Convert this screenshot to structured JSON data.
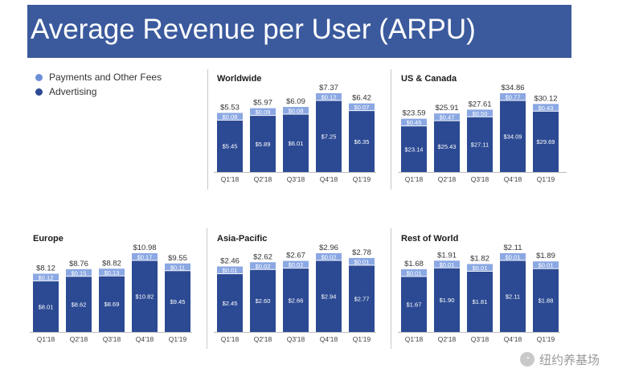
{
  "title": "Average Revenue per User (ARPU)",
  "legend": [
    {
      "label": "Payments and Other Fees",
      "color": "#6c8fd6"
    },
    {
      "label": "Advertising",
      "color": "#2c4a93"
    }
  ],
  "colors": {
    "advertising": "#2c4a93",
    "payments": "#8ba8e3",
    "title_bar": "#3b5a9d"
  },
  "watermark": "纽约养基场",
  "chart_data": [
    {
      "type": "bar",
      "stacked": true,
      "title": "Worldwide",
      "categories": [
        "Q1'18",
        "Q2'18",
        "Q3'18",
        "Q4'18",
        "Q1'19"
      ],
      "series": [
        {
          "name": "Advertising",
          "values": [
            5.45,
            5.89,
            6.01,
            7.25,
            6.35
          ],
          "labels": [
            "$5.45",
            "$5.89",
            "$6.01",
            "$7.25",
            "$6.35"
          ]
        },
        {
          "name": "Payments and Other Fees",
          "values": [
            0.08,
            0.09,
            0.08,
            0.12,
            0.07
          ],
          "labels": [
            "$0.08",
            "$0.09",
            "$0.08",
            "$0.12",
            "$0.07"
          ]
        }
      ],
      "totals": [
        5.53,
        5.97,
        6.09,
        7.37,
        6.42
      ],
      "total_labels": [
        "$5.53",
        "$5.97",
        "$6.09",
        "$7.37",
        "$6.42"
      ]
    },
    {
      "type": "bar",
      "stacked": true,
      "title": "US & Canada",
      "categories": [
        "Q1'18",
        "Q2'18",
        "Q3'18",
        "Q4'18",
        "Q1'19"
      ],
      "series": [
        {
          "name": "Advertising",
          "values": [
            23.14,
            25.43,
            27.11,
            34.09,
            29.69
          ],
          "labels": [
            "$23.14",
            "$25.43",
            "$27.11",
            "$34.09",
            "$29.69"
          ]
        },
        {
          "name": "Payments and Other Fees",
          "values": [
            0.45,
            0.47,
            0.5,
            0.77,
            0.43
          ],
          "labels": [
            "$0.45",
            "$0.47",
            "$0.50",
            "$0.77",
            "$0.43"
          ]
        }
      ],
      "totals": [
        23.59,
        25.91,
        27.61,
        34.86,
        30.12
      ],
      "total_labels": [
        "$23.59",
        "$25.91",
        "$27.61",
        "$34.86",
        "$30.12"
      ]
    },
    {
      "type": "bar",
      "stacked": true,
      "title": "Europe",
      "categories": [
        "Q1'18",
        "Q2'18",
        "Q3'18",
        "Q4'18",
        "Q1'19"
      ],
      "series": [
        {
          "name": "Advertising",
          "values": [
            8.01,
            8.62,
            8.69,
            10.82,
            9.45
          ],
          "labels": [
            "$8.01",
            "$8.62",
            "$8.69",
            "$10.82",
            "$9.45"
          ]
        },
        {
          "name": "Payments and Other Fees",
          "values": [
            0.12,
            0.15,
            0.13,
            0.17,
            0.11
          ],
          "labels": [
            "$0.12",
            "$0.15",
            "$0.13",
            "$0.17",
            "$0.11"
          ]
        }
      ],
      "totals": [
        8.12,
        8.76,
        8.82,
        10.98,
        9.55
      ],
      "total_labels": [
        "$8.12",
        "$8.76",
        "$8.82",
        "$10.98",
        "$9.55"
      ]
    },
    {
      "type": "bar",
      "stacked": true,
      "title": "Asia-Pacific",
      "categories": [
        "Q1'18",
        "Q2'18",
        "Q3'18",
        "Q4'18",
        "Q1'19"
      ],
      "series": [
        {
          "name": "Advertising",
          "values": [
            2.45,
            2.6,
            2.66,
            2.94,
            2.77
          ],
          "labels": [
            "$2.45",
            "$2.60",
            "$2.66",
            "$2.94",
            "$2.77"
          ]
        },
        {
          "name": "Payments and Other Fees",
          "values": [
            0.01,
            0.02,
            0.02,
            0.02,
            0.01
          ],
          "labels": [
            "$0.01",
            "$0.02",
            "$0.02",
            "$0.02",
            "$0.01"
          ]
        }
      ],
      "totals": [
        2.46,
        2.62,
        2.67,
        2.96,
        2.78
      ],
      "total_labels": [
        "$2.46",
        "$2.62",
        "$2.67",
        "$2.96",
        "$2.78"
      ]
    },
    {
      "type": "bar",
      "stacked": true,
      "title": "Rest of World",
      "categories": [
        "Q1'18",
        "Q2'18",
        "Q3'18",
        "Q4'18",
        "Q1'19"
      ],
      "series": [
        {
          "name": "Advertising",
          "values": [
            1.67,
            1.9,
            1.81,
            2.11,
            1.88
          ],
          "labels": [
            "$1.67",
            "$1.90",
            "$1.81",
            "$2.11",
            "$1.88"
          ]
        },
        {
          "name": "Payments and Other Fees",
          "values": [
            0.01,
            0.01,
            0.01,
            0.01,
            0.01
          ],
          "labels": [
            "$0.01",
            "$0.01",
            "$0.01",
            "$0.01",
            "$0.01"
          ]
        }
      ],
      "totals": [
        1.68,
        1.91,
        1.82,
        2.11,
        1.89
      ],
      "total_labels": [
        "$1.68",
        "$1.91",
        "$1.82",
        "$2.11",
        "$1.89"
      ]
    }
  ]
}
